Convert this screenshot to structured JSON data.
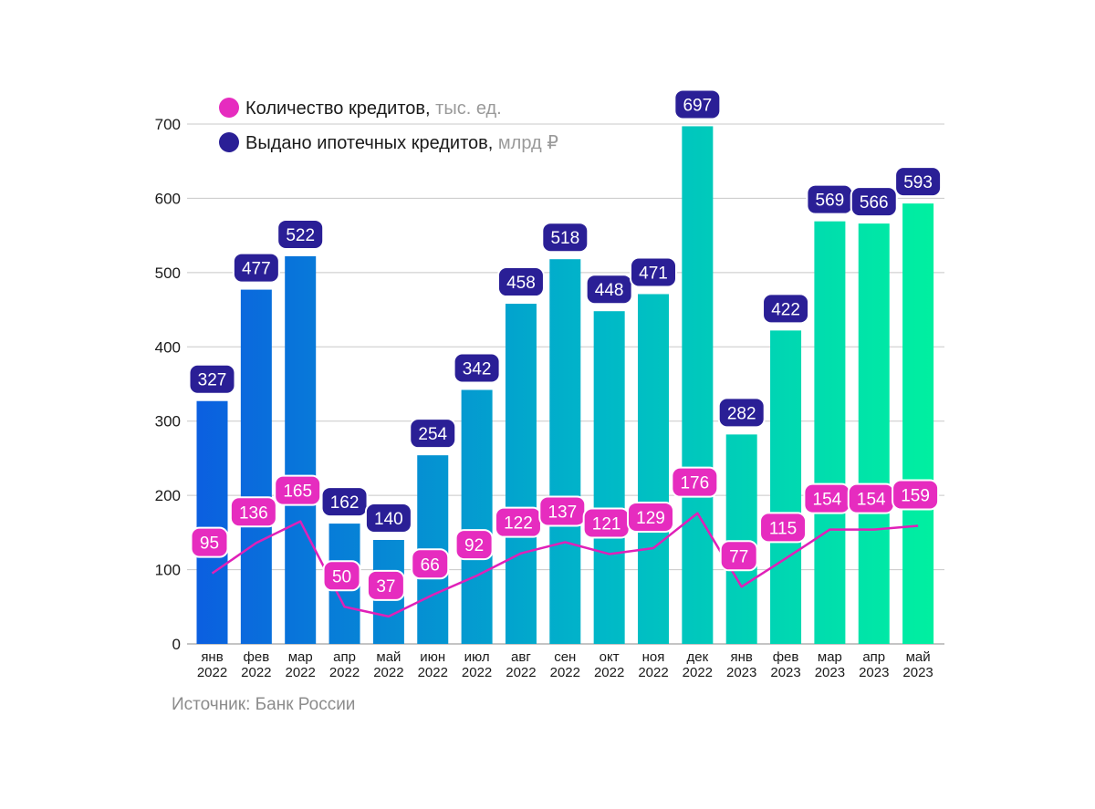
{
  "chart_data": {
    "type": "bar",
    "categories": [
      [
        "янв",
        "2022"
      ],
      [
        "фев",
        "2022"
      ],
      [
        "мар",
        "2022"
      ],
      [
        "апр",
        "2022"
      ],
      [
        "май",
        "2022"
      ],
      [
        "июн",
        "2022"
      ],
      [
        "июл",
        "2022"
      ],
      [
        "авг",
        "2022"
      ],
      [
        "сен",
        "2022"
      ],
      [
        "окт",
        "2022"
      ],
      [
        "ноя",
        "2022"
      ],
      [
        "дек",
        "2022"
      ],
      [
        "янв",
        "2023"
      ],
      [
        "фев",
        "2023"
      ],
      [
        "мар",
        "2023"
      ],
      [
        "апр",
        "2023"
      ],
      [
        "май",
        "2023"
      ]
    ],
    "series": [
      {
        "name": "Выдано ипотечных кредитов",
        "unit": "млрд ₽",
        "type": "bar",
        "values": [
          327,
          477,
          522,
          162,
          140,
          254,
          342,
          458,
          518,
          448,
          471,
          697,
          282,
          422,
          569,
          566,
          593
        ]
      },
      {
        "name": "Количество кредитов",
        "unit": "тыс. ед.",
        "type": "line",
        "values": [
          95,
          136,
          165,
          50,
          37,
          66,
          92,
          122,
          137,
          121,
          129,
          176,
          77,
          115,
          154,
          154,
          159
        ]
      }
    ],
    "y_ticks": [
      "0",
      "100",
      "200",
      "300",
      "400",
      "500",
      "600",
      "700"
    ],
    "ylim": [
      0,
      700
    ],
    "grid": true,
    "legend_position": "top-left"
  },
  "source": "Источник: Банк России",
  "colors": {
    "bar_start": "#0b5fe0",
    "bar_end": "#00f0a0",
    "line": "#e020b8",
    "bar_label_bg": "#2a1f96",
    "line_label_bg": "#e62cbf",
    "grid": "#c8c8c8"
  }
}
